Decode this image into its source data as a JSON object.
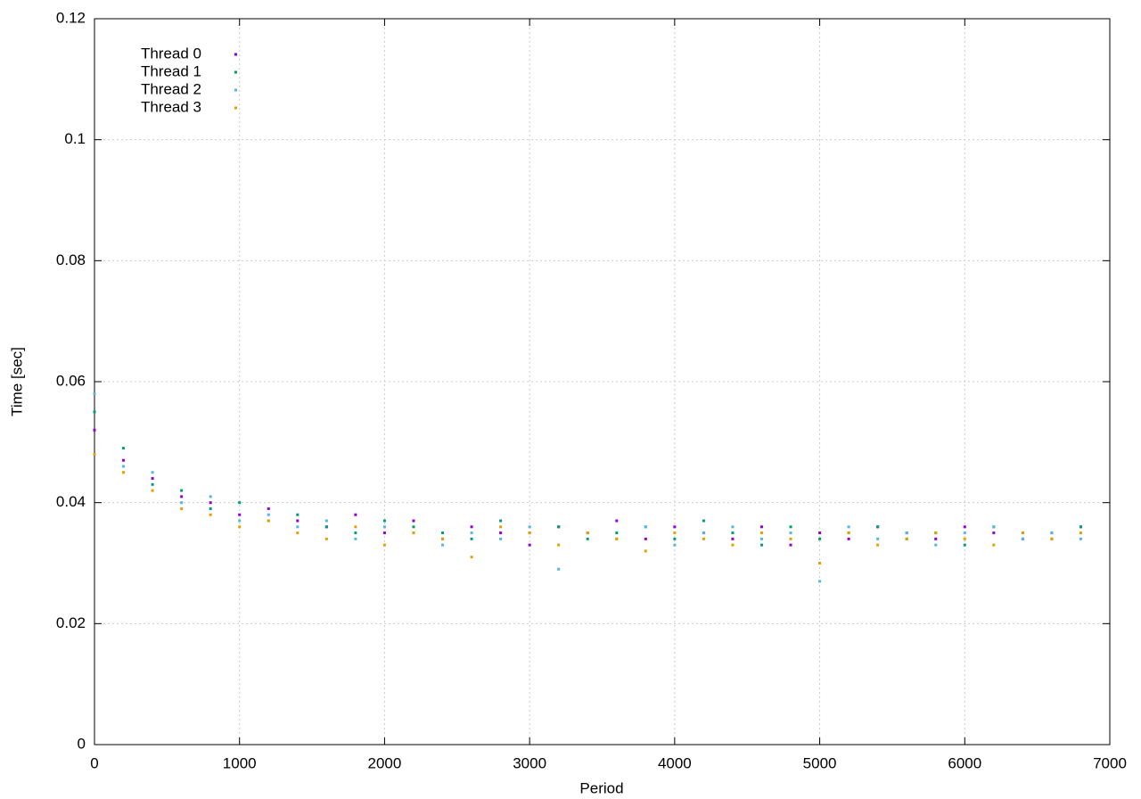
{
  "chart_data": {
    "type": "scatter",
    "xlabel": "Period",
    "ylabel": "Time [sec]",
    "xlim": [
      0,
      7000
    ],
    "ylim": [
      0,
      0.12
    ],
    "xticks": [
      0,
      1000,
      2000,
      3000,
      4000,
      5000,
      6000,
      7000
    ],
    "yticks": [
      0,
      0.02,
      0.04,
      0.06,
      0.08,
      0.1,
      0.12
    ],
    "grid": true,
    "legend": "top-left",
    "x": [
      0,
      200,
      400,
      600,
      800,
      1000,
      1200,
      1400,
      1600,
      1800,
      2000,
      2200,
      2400,
      2600,
      2800,
      3000,
      3200,
      3400,
      3600,
      3800,
      4000,
      4200,
      4400,
      4600,
      4800,
      5000,
      5200,
      5400,
      5600,
      5800,
      6000,
      6200,
      6400,
      6600,
      6800
    ],
    "series": [
      {
        "name": "Thread 0",
        "color": "#9400d3",
        "values": [
          0.052,
          0.047,
          0.044,
          0.041,
          0.04,
          0.038,
          0.039,
          0.037,
          0.036,
          0.038,
          0.035,
          0.037,
          0.034,
          0.036,
          0.035,
          0.033,
          0.036,
          0.035,
          0.037,
          0.034,
          0.036,
          0.035,
          0.034,
          0.036,
          0.033,
          0.035,
          0.034,
          0.036,
          0.035,
          0.034,
          0.036,
          0.035,
          0.034,
          0.035,
          0.036
        ]
      },
      {
        "name": "Thread 1",
        "color": "#009e73",
        "values": [
          0.055,
          0.049,
          0.043,
          0.042,
          0.039,
          0.04,
          0.037,
          0.038,
          0.036,
          0.035,
          0.037,
          0.036,
          0.035,
          0.034,
          0.037,
          0.035,
          0.036,
          0.034,
          0.035,
          0.036,
          0.034,
          0.037,
          0.035,
          0.033,
          0.036,
          0.034,
          0.035,
          0.036,
          0.034,
          0.035,
          0.033,
          0.036,
          0.035,
          0.034,
          0.036
        ]
      },
      {
        "name": "Thread 2",
        "color": "#56b4e9",
        "values": [
          0.058,
          0.046,
          0.045,
          0.04,
          0.041,
          0.037,
          0.038,
          0.036,
          0.037,
          0.034,
          0.036,
          0.035,
          0.033,
          0.035,
          0.034,
          0.036,
          0.029,
          0.035,
          0.034,
          0.036,
          0.033,
          0.035,
          0.036,
          0.034,
          0.035,
          0.027,
          0.036,
          0.034,
          0.035,
          0.033,
          0.035,
          0.036,
          0.034,
          0.035,
          0.034
        ]
      },
      {
        "name": "Thread 3",
        "color": "#e69f00",
        "values": [
          0.048,
          0.045,
          0.042,
          0.039,
          0.038,
          0.036,
          0.037,
          0.035,
          0.034,
          0.036,
          0.033,
          0.035,
          0.034,
          0.031,
          0.036,
          0.035,
          0.033,
          0.035,
          0.034,
          0.032,
          0.035,
          0.034,
          0.033,
          0.035,
          0.034,
          0.03,
          0.035,
          0.033,
          0.034,
          0.035,
          0.034,
          0.033,
          0.035,
          0.034,
          0.035
        ]
      }
    ]
  }
}
